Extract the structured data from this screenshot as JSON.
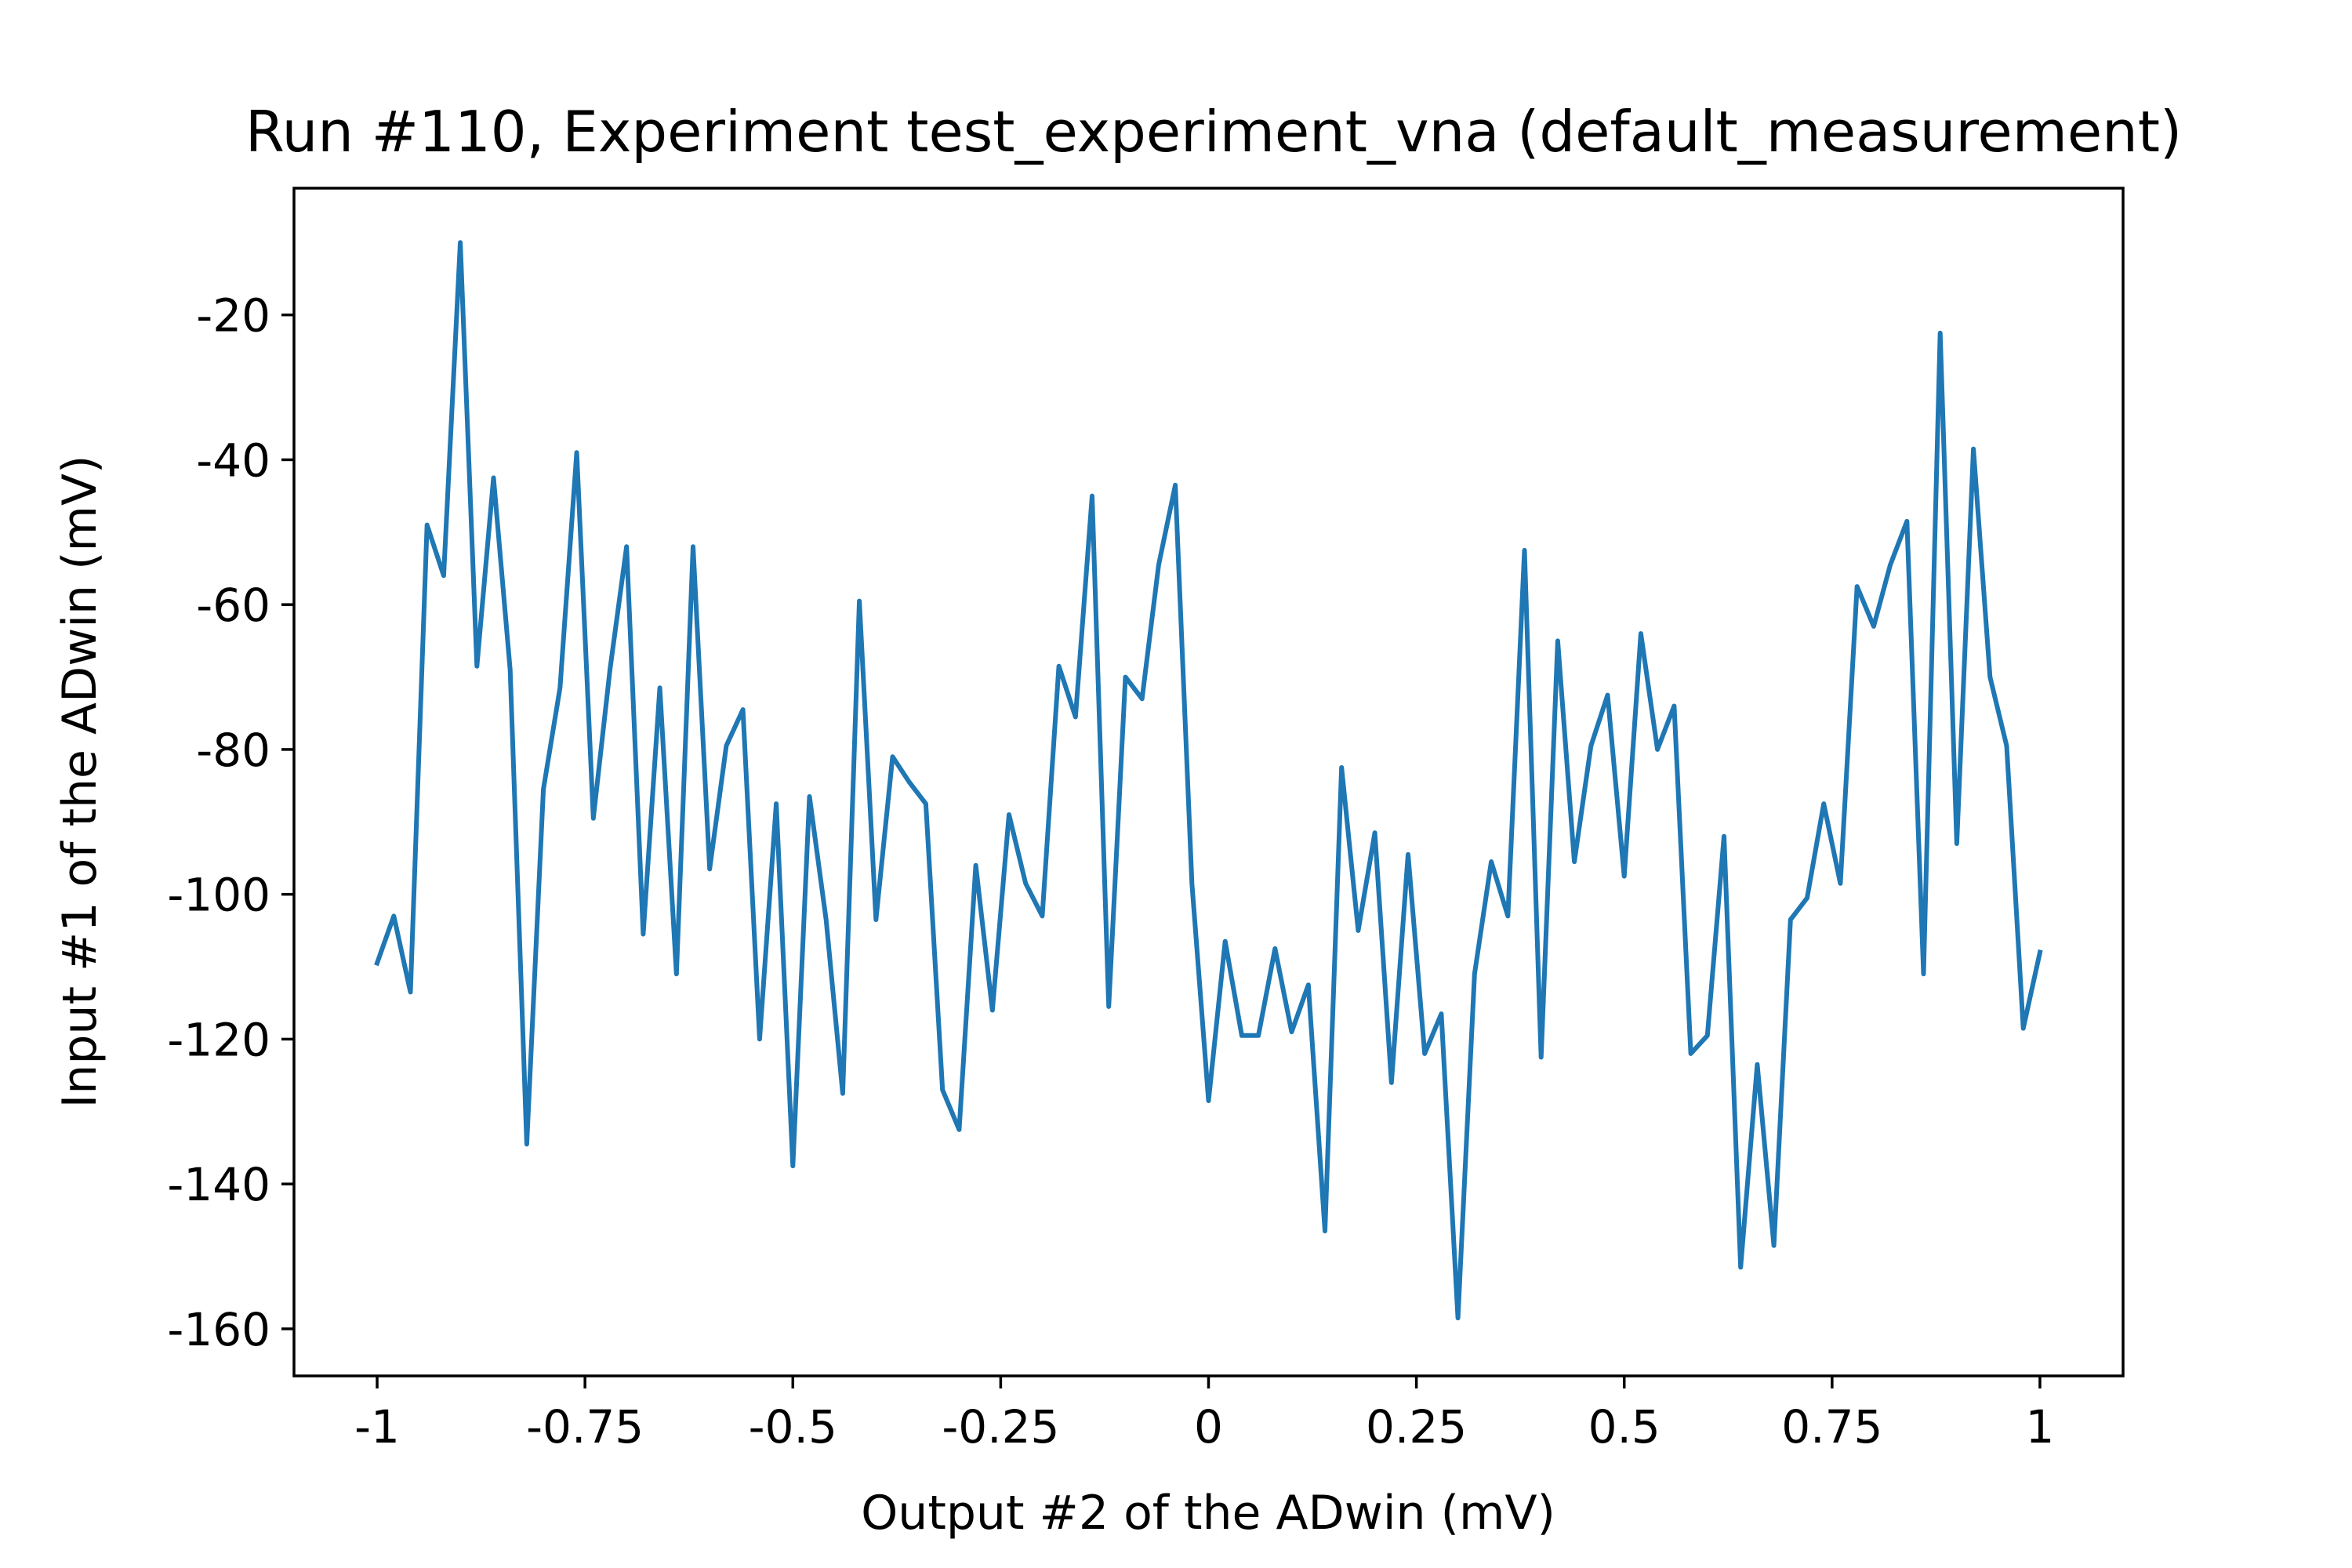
{
  "chart_data": {
    "type": "line",
    "title": "Run #110, Experiment test_experiment_vna (default_measurement)",
    "xlabel": "Output #2 of the ADwin (mV)",
    "ylabel": "Input #1 of the ADwin (mV)",
    "xlim": [
      -1.1,
      1.1
    ],
    "ylim": [
      -166.5,
      -2.5
    ],
    "x_ticks": [
      {
        "value": -1,
        "label": "-1"
      },
      {
        "value": -0.75,
        "label": "-0.75"
      },
      {
        "value": -0.5,
        "label": "-0.5"
      },
      {
        "value": -0.25,
        "label": "-0.25"
      },
      {
        "value": 0,
        "label": "0"
      },
      {
        "value": 0.25,
        "label": "0.25"
      },
      {
        "value": 0.5,
        "label": "0.5"
      },
      {
        "value": 0.75,
        "label": "0.75"
      },
      {
        "value": 1,
        "label": "1"
      }
    ],
    "y_ticks": [
      {
        "value": -20,
        "label": "-20"
      },
      {
        "value": -40,
        "label": "-40"
      },
      {
        "value": -60,
        "label": "-60"
      },
      {
        "value": -80,
        "label": "-80"
      },
      {
        "value": -100,
        "label": "-100"
      },
      {
        "value": -120,
        "label": "-120"
      },
      {
        "value": -140,
        "label": "-140"
      },
      {
        "value": -160,
        "label": "-160"
      }
    ],
    "grid": false,
    "series": [
      {
        "color": "#1f77b4",
        "x": [
          -1.0,
          -0.98,
          -0.96,
          -0.94,
          -0.92,
          -0.9,
          -0.88,
          -0.86,
          -0.84,
          -0.82,
          -0.8,
          -0.78,
          -0.76,
          -0.74,
          -0.72,
          -0.7,
          -0.68,
          -0.66,
          -0.64,
          -0.62,
          -0.6,
          -0.58,
          -0.56,
          -0.54,
          -0.52,
          -0.5,
          -0.48,
          -0.46,
          -0.44,
          -0.42,
          -0.4,
          -0.38,
          -0.36,
          -0.34,
          -0.32,
          -0.3,
          -0.28,
          -0.26,
          -0.24,
          -0.22,
          -0.2,
          -0.18,
          -0.16,
          -0.14,
          -0.12,
          -0.1,
          -0.08,
          -0.06,
          -0.04,
          -0.02,
          0.0,
          0.02,
          0.04,
          0.06,
          0.08,
          0.1,
          0.12,
          0.14,
          0.16,
          0.18,
          0.2,
          0.22,
          0.24,
          0.26,
          0.28,
          0.3,
          0.32,
          0.34,
          0.36,
          0.38,
          0.4,
          0.42,
          0.44,
          0.46,
          0.48,
          0.5,
          0.52,
          0.54,
          0.56,
          0.58,
          0.6,
          0.62,
          0.64,
          0.66,
          0.68,
          0.7,
          0.72,
          0.74,
          0.76,
          0.78,
          0.8,
          0.82,
          0.84,
          0.86,
          0.88,
          0.9,
          0.92,
          0.94,
          0.96,
          0.98,
          1.0
        ],
        "y": [
          -109.5,
          -103,
          -113.5,
          -49,
          -56,
          -10,
          -68.5,
          -42.5,
          -69,
          -134.5,
          -85.5,
          -71.5,
          -39,
          -89.5,
          -69,
          -52,
          -105.5,
          -71.5,
          -111,
          -52,
          -96.5,
          -79.5,
          -74.5,
          -120,
          -87.5,
          -137.5,
          -86.5,
          -103.5,
          -127.5,
          -59.5,
          -103.5,
          -81,
          -84.5,
          -87.5,
          -127,
          -132.5,
          -96,
          -116,
          -89,
          -98.5,
          -103,
          -68.5,
          -75.5,
          -45,
          -115.5,
          -70,
          -73,
          -54.5,
          -43.5,
          -98.5,
          -128.5,
          -106.5,
          -119.5,
          -119.5,
          -107.5,
          -119,
          -112.5,
          -146.5,
          -82.5,
          -105,
          -91.5,
          -126,
          -94.5,
          -122,
          -116.5,
          -158.5,
          -111,
          -95.5,
          -103,
          -52.5,
          -122.5,
          -65,
          -95.5,
          -79.5,
          -72.5,
          -97.5,
          -64,
          -80,
          -74,
          -122,
          -119.5,
          -92,
          -151.5,
          -123.5,
          -148.5,
          -103.5,
          -100.5,
          -87.5,
          -98.5,
          -57.5,
          -63,
          -54.5,
          -48.5,
          -111,
          -22.5,
          -93,
          -38.5,
          -70,
          -79.5,
          -118.5,
          -108
        ]
      }
    ]
  }
}
